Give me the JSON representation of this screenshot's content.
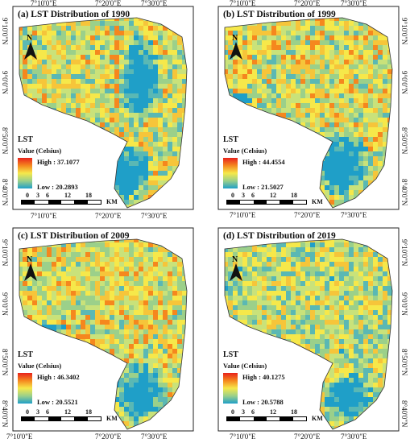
{
  "panels": [
    {
      "title": "(a) LST Distribution of 1990",
      "top_ticks": [
        "7°10'0\"E",
        "7°20'0\"E",
        "7°30'0\"E"
      ],
      "lat_ticks": [
        "9°10'0\"N",
        "9°0'0\"N",
        "8°50'0\"N",
        "8°40'0\"N"
      ],
      "legend": {
        "title": "LST",
        "subtitle": "Value (Celsius)",
        "high": "High : 37.1077",
        "low": "Low : 20.2893"
      }
    },
    {
      "title": "(b) LST Distribution of 1999",
      "top_ticks": [
        "7°10'0\"E",
        "7°20'0\"E",
        "7°30'0\"E"
      ],
      "lat_ticks": [
        "9°10'0\"N",
        "9°0'0\"N",
        "8°50'0\"N",
        "8°40'0\"N"
      ],
      "legend": {
        "title": "LST",
        "subtitle": "Value (Celsius)",
        "high": "High : 44.4554",
        "low": "Low : 21.5027"
      }
    },
    {
      "title": "(c) LST Distribution of 2009",
      "top_ticks": [
        "7°10'0\"E",
        "7°20'0\"E",
        "7°30'0\"E"
      ],
      "lat_ticks": [
        "9°10'0\"N",
        "9°0'0\"N",
        "8°50'0\"N",
        "8°40'0\"N"
      ],
      "legend": {
        "title": "LST",
        "subtitle": "Value (Celsius)",
        "high": "High : 46.3402",
        "low": "Low : 20.5521"
      }
    },
    {
      "title": "(d) LST Distribution of 2019",
      "top_ticks": [
        "7°10'0\"E",
        "7°20'0\"E",
        "7°30'0\"E"
      ],
      "lat_ticks": [
        "9°10'0\"N",
        "9°0'0\"N",
        "8°50'0\"N",
        "8°40'0\"N"
      ],
      "legend": {
        "title": "LST",
        "subtitle": "Value (Celsius)",
        "high": "High : 40.1275",
        "low": "Low : 20.5788"
      }
    }
  ],
  "north_arrow": "N",
  "scale_bar": {
    "ticks": [
      "0",
      "3",
      "6",
      "12",
      "18"
    ],
    "unit": "KM"
  },
  "bottom_ticks": [
    "7°10'0\"E",
    "7°20'0\"E",
    "7°30'0\"E"
  ],
  "colors": {
    "high": "#e8221c",
    "mid": "#f6e84a",
    "low": "#1f9fc8"
  }
}
